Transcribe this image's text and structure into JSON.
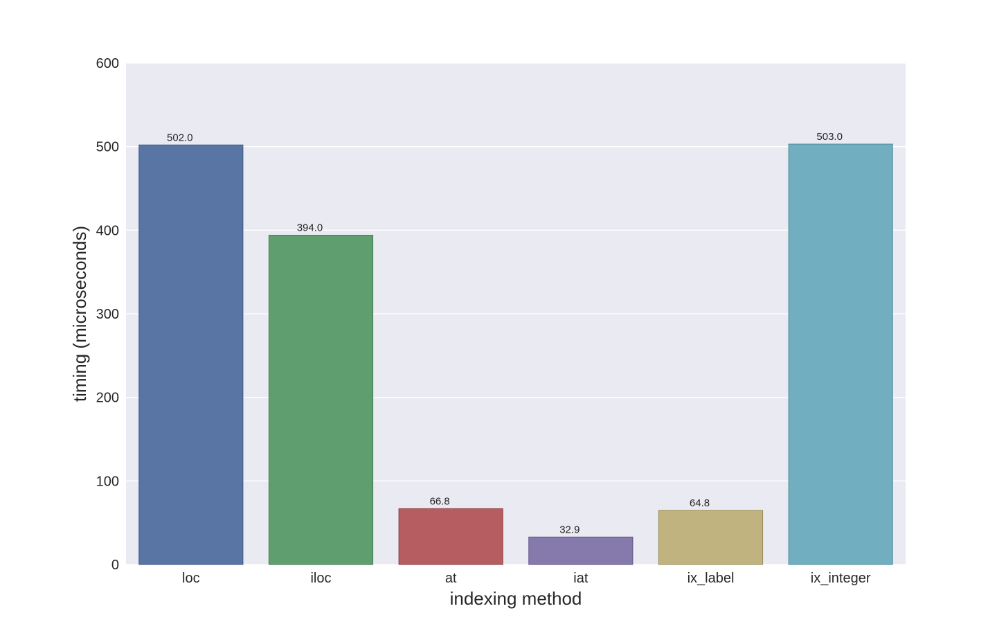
{
  "chart_data": {
    "type": "bar",
    "title": "",
    "xlabel": "indexing method",
    "ylabel": "timing (microseconds)",
    "categories": [
      "loc",
      "iloc",
      "at",
      "iat",
      "ix_label",
      "ix_integer"
    ],
    "values": [
      502.0,
      394.0,
      66.8,
      32.9,
      64.8,
      503.0
    ],
    "value_labels": [
      "502.0",
      "394.0",
      "66.8",
      "32.9",
      "64.8",
      "503.0"
    ],
    "colors": [
      "#5975a4",
      "#5f9e6e",
      "#b55d60",
      "#857aab",
      "#c1b37f",
      "#71aec0"
    ],
    "edge_colors": [
      "#3c5a86",
      "#3f7b4c",
      "#8c3d40",
      "#5e5487",
      "#9a8c5a",
      "#4d8a9b"
    ],
    "ylim": [
      0,
      600
    ],
    "yticks": [
      0,
      100,
      200,
      300,
      400,
      500,
      600
    ],
    "ytick_labels": [
      "0",
      "100",
      "200",
      "300",
      "400",
      "500",
      "600"
    ],
    "grid": true,
    "background": "#eaeaf2",
    "grid_color": "#ffffff",
    "legend": "none"
  }
}
